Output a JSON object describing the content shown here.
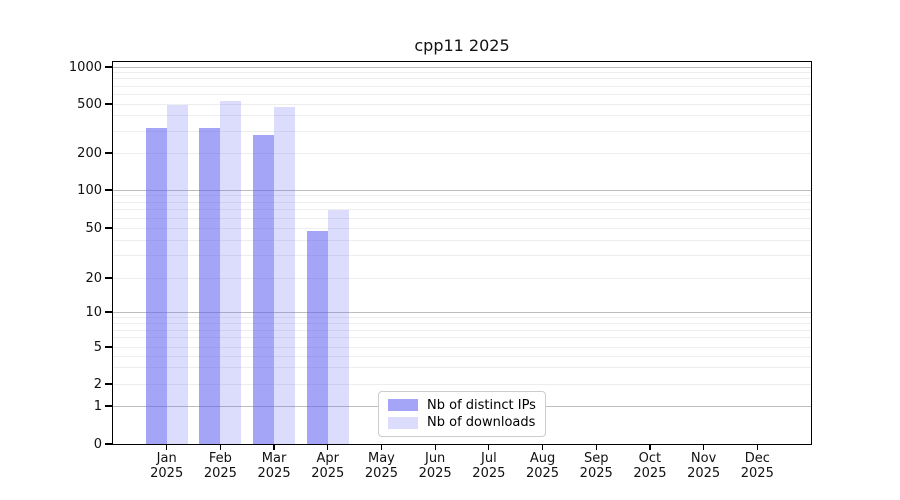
{
  "chart_data": {
    "type": "bar",
    "title": "cpp11 2025",
    "months": [
      "Jan",
      "Feb",
      "Mar",
      "Apr",
      "May",
      "Jun",
      "Jul",
      "Aug",
      "Sep",
      "Oct",
      "Nov",
      "Dec"
    ],
    "year": "2025",
    "series": [
      {
        "name": "Nb of distinct IPs",
        "color": "rgba(95,95,240,0.56)",
        "values": [
          320,
          320,
          280,
          47,
          null,
          null,
          null,
          null,
          null,
          null,
          null,
          null
        ]
      },
      {
        "name": "Nb of downloads",
        "color": "rgba(95,95,240,0.22)",
        "values": [
          490,
          530,
          470,
          70,
          null,
          null,
          null,
          null,
          null,
          null,
          null,
          null
        ]
      }
    ],
    "y_ticks": [
      0,
      1,
      2,
      5,
      10,
      20,
      50,
      100,
      200,
      500,
      1000
    ],
    "y_scale": "symlog",
    "ylim": [
      0,
      1150
    ],
    "grid": "on",
    "grid_major_color": "#bdbdbd",
    "grid_minor_color": "#ededed",
    "legend_position": "inside-bottom-center",
    "xlabel": "",
    "ylabel": ""
  }
}
